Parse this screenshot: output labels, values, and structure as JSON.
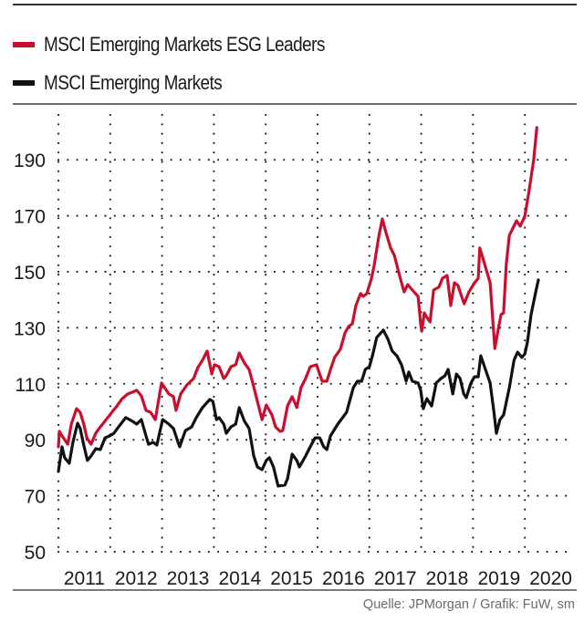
{
  "colors": {
    "esg_line": "#c8102e",
    "em_line": "#111111",
    "grid": "#222222",
    "text": "#1a1a1a",
    "source_text": "#6b6b6b"
  },
  "legend": [
    {
      "label": "MSCI Emerging Markets ESG Leaders",
      "color": "#c8102e"
    },
    {
      "label": "MSCI Emerging Markets",
      "color": "#111111"
    }
  ],
  "source": "Quelle: JPMorgan / Grafik: FuW, sm",
  "chart_data": {
    "type": "line",
    "title": "",
    "xlabel": "",
    "ylabel": "",
    "ylim": [
      50,
      205
    ],
    "xlim": [
      2011.0,
      2020.96
    ],
    "y_ticks": [
      50,
      70,
      90,
      110,
      130,
      150,
      170,
      190
    ],
    "x_tick_labels": [
      "2011",
      "2012",
      "2013",
      "2014",
      "2015",
      "2016",
      "2017",
      "2018",
      "2019",
      "2020"
    ],
    "x_grid_years": [
      2011,
      2012,
      2013,
      2014,
      2015,
      2016,
      2017,
      2018,
      2019,
      2020
    ],
    "grid": "dotted",
    "legend_position": "top-left",
    "series": [
      {
        "name": "MSCI Emerging Markets ESG Leaders",
        "color": "#c8102e",
        "points": [
          [
            2011.0,
            87.5
          ],
          [
            2011.02,
            93.0
          ],
          [
            2011.07,
            91.4
          ],
          [
            2011.18,
            88.4
          ],
          [
            2011.25,
            95.6
          ],
          [
            2011.35,
            101.1
          ],
          [
            2011.42,
            99.8
          ],
          [
            2011.49,
            95.6
          ],
          [
            2011.55,
            90.7
          ],
          [
            2011.63,
            88.4
          ],
          [
            2011.72,
            92.3
          ],
          [
            2011.81,
            94.6
          ],
          [
            2011.92,
            97.2
          ],
          [
            2012.02,
            99.5
          ],
          [
            2012.13,
            102.1
          ],
          [
            2012.23,
            104.7
          ],
          [
            2012.34,
            106.4
          ],
          [
            2012.43,
            107.0
          ],
          [
            2012.51,
            107.7
          ],
          [
            2012.6,
            105.7
          ],
          [
            2012.69,
            100.5
          ],
          [
            2012.78,
            99.8
          ],
          [
            2012.87,
            97.2
          ],
          [
            2012.99,
            110.3
          ],
          [
            2013.13,
            106.4
          ],
          [
            2013.22,
            105.4
          ],
          [
            2013.27,
            100.5
          ],
          [
            2013.36,
            106.4
          ],
          [
            2013.48,
            109.6
          ],
          [
            2013.61,
            111.9
          ],
          [
            2013.69,
            115.8
          ],
          [
            2013.78,
            118.4
          ],
          [
            2013.87,
            121.7
          ],
          [
            2013.96,
            113.5
          ],
          [
            2014.01,
            116.8
          ],
          [
            2014.1,
            116.1
          ],
          [
            2014.19,
            111.9
          ],
          [
            2014.24,
            112.9
          ],
          [
            2014.33,
            116.1
          ],
          [
            2014.42,
            116.8
          ],
          [
            2014.49,
            121.0
          ],
          [
            2014.59,
            117.4
          ],
          [
            2014.68,
            115.1
          ],
          [
            2014.75,
            110.3
          ],
          [
            2014.84,
            103.7
          ],
          [
            2014.93,
            97.2
          ],
          [
            2015.01,
            102.4
          ],
          [
            2015.12,
            98.9
          ],
          [
            2015.19,
            94.6
          ],
          [
            2015.28,
            93.0
          ],
          [
            2015.33,
            93.3
          ],
          [
            2015.42,
            102.1
          ],
          [
            2015.51,
            105.4
          ],
          [
            2015.6,
            101.5
          ],
          [
            2015.68,
            108.6
          ],
          [
            2015.77,
            111.9
          ],
          [
            2015.86,
            116.1
          ],
          [
            2015.98,
            116.8
          ],
          [
            2016.04,
            113.5
          ],
          [
            2016.09,
            110.9
          ],
          [
            2016.18,
            110.9
          ],
          [
            2016.25,
            115.1
          ],
          [
            2016.33,
            119.4
          ],
          [
            2016.44,
            122.3
          ],
          [
            2016.53,
            128.2
          ],
          [
            2016.6,
            130.5
          ],
          [
            2016.67,
            131.4
          ],
          [
            2016.74,
            137.9
          ],
          [
            2016.83,
            142.2
          ],
          [
            2016.88,
            141.2
          ],
          [
            2016.95,
            142.2
          ],
          [
            2017.04,
            147.7
          ],
          [
            2017.09,
            152.0
          ],
          [
            2017.18,
            162.4
          ],
          [
            2017.25,
            168.9
          ],
          [
            2017.32,
            164.0
          ],
          [
            2017.41,
            158.5
          ],
          [
            2017.48,
            155.9
          ],
          [
            2017.55,
            151.0
          ],
          [
            2017.62,
            146.1
          ],
          [
            2017.67,
            142.8
          ],
          [
            2017.74,
            145.4
          ],
          [
            2017.83,
            143.5
          ],
          [
            2017.94,
            141.2
          ],
          [
            2017.99,
            131.4
          ],
          [
            2018.01,
            128.8
          ],
          [
            2018.06,
            135.3
          ],
          [
            2018.11,
            133.7
          ],
          [
            2018.17,
            132.1
          ],
          [
            2018.24,
            143.5
          ],
          [
            2018.34,
            144.5
          ],
          [
            2018.41,
            147.7
          ],
          [
            2018.5,
            148.7
          ],
          [
            2018.57,
            137.9
          ],
          [
            2018.64,
            146.1
          ],
          [
            2018.71,
            145.1
          ],
          [
            2018.78,
            141.2
          ],
          [
            2018.83,
            138.6
          ],
          [
            2018.92,
            142.8
          ],
          [
            2019.03,
            146.1
          ],
          [
            2019.1,
            147.7
          ],
          [
            2019.13,
            158.5
          ],
          [
            2019.2,
            154.2
          ],
          [
            2019.33,
            146.1
          ],
          [
            2019.38,
            133.1
          ],
          [
            2019.42,
            122.6
          ],
          [
            2019.49,
            129.8
          ],
          [
            2019.54,
            134.7
          ],
          [
            2019.59,
            135.3
          ],
          [
            2019.64,
            152.6
          ],
          [
            2019.7,
            163.0
          ],
          [
            2019.77,
            165.6
          ],
          [
            2019.84,
            168.2
          ],
          [
            2019.91,
            166.3
          ],
          [
            2020.0,
            169.9
          ],
          [
            2020.08,
            178.7
          ],
          [
            2020.17,
            190.1
          ],
          [
            2020.23,
            201.5
          ]
        ]
      },
      {
        "name": "MSCI Emerging Markets",
        "color": "#111111",
        "points": [
          [
            2011.0,
            78.7
          ],
          [
            2011.07,
            87.5
          ],
          [
            2011.12,
            83.6
          ],
          [
            2011.21,
            81.6
          ],
          [
            2011.28,
            89.1
          ],
          [
            2011.37,
            95.9
          ],
          [
            2011.42,
            94.0
          ],
          [
            2011.49,
            88.1
          ],
          [
            2011.56,
            82.6
          ],
          [
            2011.63,
            84.2
          ],
          [
            2011.72,
            86.8
          ],
          [
            2011.81,
            86.5
          ],
          [
            2011.9,
            90.7
          ],
          [
            2011.99,
            91.4
          ],
          [
            2012.07,
            92.3
          ],
          [
            2012.16,
            94.6
          ],
          [
            2012.3,
            97.9
          ],
          [
            2012.43,
            96.6
          ],
          [
            2012.51,
            95.6
          ],
          [
            2012.6,
            97.2
          ],
          [
            2012.69,
            91.4
          ],
          [
            2012.74,
            88.4
          ],
          [
            2012.83,
            89.1
          ],
          [
            2012.9,
            88.1
          ],
          [
            2013.01,
            97.2
          ],
          [
            2013.13,
            95.6
          ],
          [
            2013.22,
            94.0
          ],
          [
            2013.31,
            89.1
          ],
          [
            2013.34,
            87.5
          ],
          [
            2013.45,
            93.3
          ],
          [
            2013.57,
            94.6
          ],
          [
            2013.66,
            97.9
          ],
          [
            2013.78,
            101.5
          ],
          [
            2013.92,
            104.4
          ],
          [
            2013.98,
            103.7
          ],
          [
            2014.05,
            97.2
          ],
          [
            2014.1,
            97.9
          ],
          [
            2014.19,
            95.6
          ],
          [
            2014.24,
            92.3
          ],
          [
            2014.33,
            94.6
          ],
          [
            2014.42,
            95.6
          ],
          [
            2014.49,
            101.5
          ],
          [
            2014.59,
            96.6
          ],
          [
            2014.68,
            94.0
          ],
          [
            2014.77,
            84.2
          ],
          [
            2014.84,
            80.3
          ],
          [
            2014.93,
            79.3
          ],
          [
            2015.01,
            82.6
          ],
          [
            2015.07,
            83.6
          ],
          [
            2015.15,
            80.3
          ],
          [
            2015.24,
            73.5
          ],
          [
            2015.37,
            73.8
          ],
          [
            2015.42,
            76.1
          ],
          [
            2015.51,
            84.9
          ],
          [
            2015.6,
            82.6
          ],
          [
            2015.65,
            80.3
          ],
          [
            2015.77,
            84.2
          ],
          [
            2015.86,
            87.5
          ],
          [
            2015.95,
            90.7
          ],
          [
            2016.04,
            90.7
          ],
          [
            2016.12,
            87.5
          ],
          [
            2016.18,
            86.5
          ],
          [
            2016.25,
            91.4
          ],
          [
            2016.39,
            95.6
          ],
          [
            2016.56,
            99.8
          ],
          [
            2016.69,
            108.6
          ],
          [
            2016.77,
            110.9
          ],
          [
            2016.85,
            110.9
          ],
          [
            2016.92,
            115.1
          ],
          [
            2017.0,
            116.1
          ],
          [
            2017.06,
            120.0
          ],
          [
            2017.14,
            126.5
          ],
          [
            2017.27,
            129.2
          ],
          [
            2017.36,
            125.9
          ],
          [
            2017.44,
            121.7
          ],
          [
            2017.53,
            120.0
          ],
          [
            2017.62,
            116.8
          ],
          [
            2017.71,
            110.9
          ],
          [
            2017.76,
            114.2
          ],
          [
            2017.83,
            110.9
          ],
          [
            2017.94,
            110.3
          ],
          [
            2017.99,
            107.7
          ],
          [
            2018.04,
            101.1
          ],
          [
            2018.11,
            104.7
          ],
          [
            2018.2,
            102.1
          ],
          [
            2018.29,
            110.3
          ],
          [
            2018.38,
            111.9
          ],
          [
            2018.46,
            112.9
          ],
          [
            2018.52,
            115.1
          ],
          [
            2018.61,
            106.4
          ],
          [
            2018.68,
            113.5
          ],
          [
            2018.75,
            111.9
          ],
          [
            2018.82,
            106.4
          ],
          [
            2018.87,
            105.0
          ],
          [
            2018.96,
            110.3
          ],
          [
            2019.03,
            112.5
          ],
          [
            2019.1,
            112.5
          ],
          [
            2019.15,
            120.0
          ],
          [
            2019.24,
            115.1
          ],
          [
            2019.33,
            110.3
          ],
          [
            2019.4,
            100.5
          ],
          [
            2019.45,
            92.3
          ],
          [
            2019.52,
            97.2
          ],
          [
            2019.59,
            98.9
          ],
          [
            2019.7,
            108.6
          ],
          [
            2019.79,
            118.4
          ],
          [
            2019.86,
            121.3
          ],
          [
            2019.94,
            119.4
          ],
          [
            2020.0,
            120.7
          ],
          [
            2020.05,
            124.9
          ],
          [
            2020.12,
            134.7
          ],
          [
            2020.21,
            142.8
          ],
          [
            2020.26,
            147.1
          ]
        ]
      }
    ]
  }
}
